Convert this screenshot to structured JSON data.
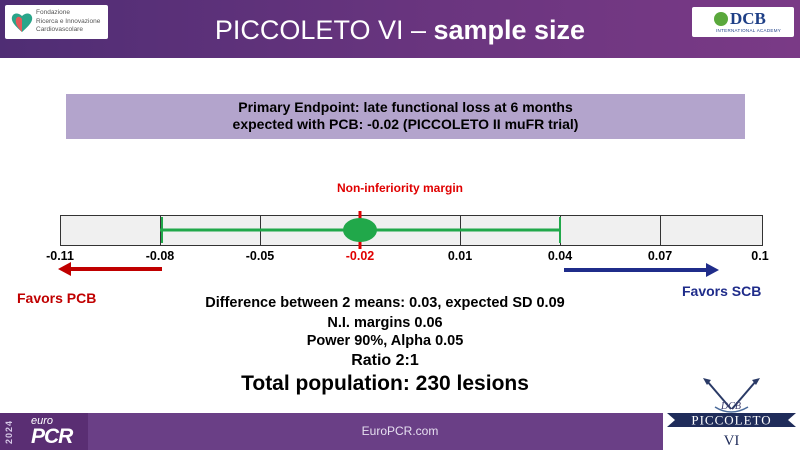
{
  "header": {
    "title_plain": "PICCOLETO VI – ",
    "title_bold": "sample size",
    "logo_left_text": [
      "Fondazione",
      "Ricerca e Innovazione",
      "Cardiovascolare"
    ],
    "logo_right_main": "DCB",
    "logo_right_sub": "INTERNATIONAL ACADEMY"
  },
  "endpoint": {
    "line1": "Primary Endpoint: late functional loss at 6 months",
    "line2": "expected with PCB: -0.02 (PICCOLETO II muFR trial)"
  },
  "forest": {
    "ni_label": "Non-inferiority margin",
    "ticks": [
      "-0.11",
      "-0.08",
      "-0.05",
      "-0.02",
      "0.01",
      "0.04",
      "0.07",
      "0.1"
    ],
    "highlighted_tick": "-0.02",
    "point_estimate": -0.02,
    "ci_low": -0.08,
    "ci_high": 0.04,
    "favors_left": "Favors PCB",
    "favors_right": "Favors SCB",
    "colors": {
      "ci_line": "#21a84a",
      "center_marker": "#e00000",
      "left_arrow": "#c00000",
      "right_arrow": "#1f2c8a"
    }
  },
  "stats": {
    "line1": "Difference between 2 means: 0.03, expected SD 0.09",
    "line2": "N.I. margins 0.06",
    "line3": "Power 90%, Alpha 0.05",
    "line4": "Ratio 2:1",
    "line5": "Total population: 230 lesions"
  },
  "footer": {
    "year": "2024",
    "brand_small": "euro",
    "brand_big": "PCR",
    "url": "EuroPCR.com"
  },
  "picco_logo": {
    "top": "DCB",
    "name": "PICCOLETO",
    "numeral": "VI"
  }
}
